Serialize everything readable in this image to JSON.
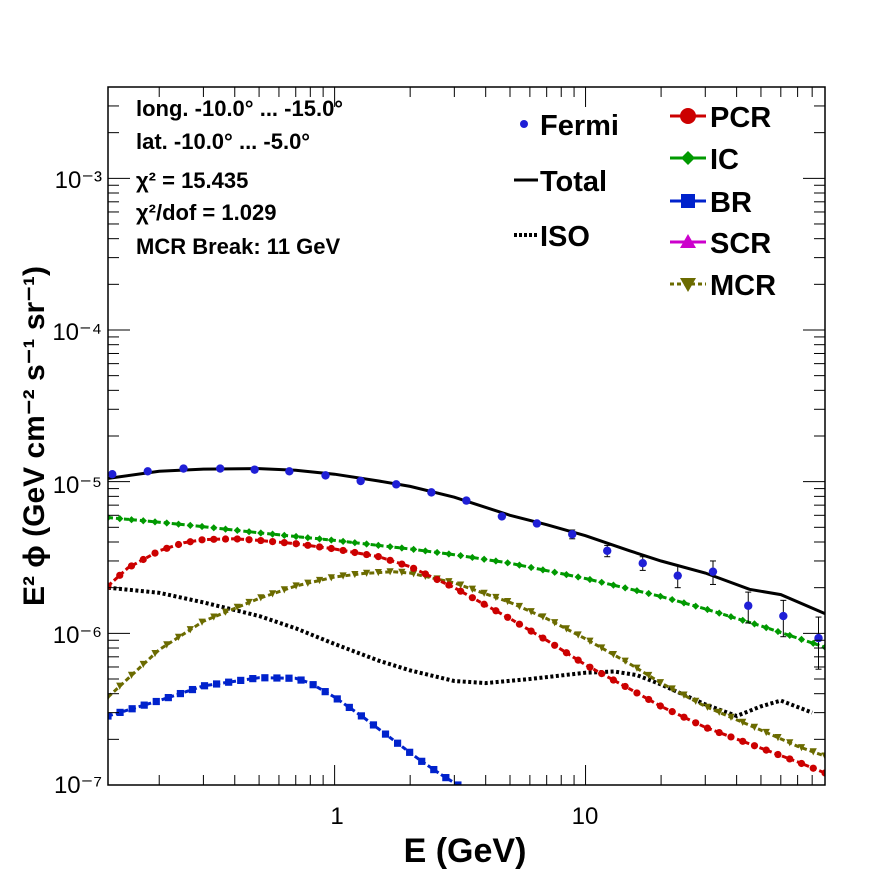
{
  "chart_data": {
    "type": "line",
    "xscale": "log",
    "yscale": "log",
    "xlim": [
      0.125,
      90
    ],
    "ylim": [
      1e-07,
      0.004
    ],
    "xlabel": "E (GeV)",
    "ylabel": "E² ϕ (GeV cm⁻² s⁻¹ sr⁻¹)",
    "x_ticklabels": [
      "1",
      "10"
    ],
    "y_ticklabels": [
      "10⁻⁷",
      "10⁻⁶",
      "10⁻⁵",
      "10⁻⁴",
      "10⁻³"
    ],
    "annotations": [
      "long. -10.0° ... -15.0°",
      "lat. -10.0° ... -5.0°",
      "χ² = 15.435",
      "χ²/dof = 1.029",
      "MCR Break: 11 GeV"
    ],
    "legend_left": [
      "Fermi",
      "Total",
      "ISO"
    ],
    "legend_right": [
      "PCR",
      "IC",
      "BR",
      "SCR",
      "MCR"
    ],
    "series": [
      {
        "name": "Fermi",
        "style": "points",
        "color": "#1f1fd6",
        "x": [
          0.13,
          0.18,
          0.25,
          0.35,
          0.48,
          0.66,
          0.92,
          1.27,
          1.76,
          2.43,
          3.35,
          4.64,
          6.4,
          8.85,
          12.2,
          16.9,
          23.3,
          32.2,
          44.5,
          61.4,
          84.8
        ],
        "y": [
          1.12e-05,
          1.17e-05,
          1.22e-05,
          1.22e-05,
          1.2e-05,
          1.17e-05,
          1.1e-05,
          1.01e-05,
          9.6e-06,
          8.5e-06,
          7.5e-06,
          5.9e-06,
          5.3e-06,
          4.5e-06,
          3.5e-06,
          2.9e-06,
          2.4e-06,
          2.55e-06,
          1.52e-06,
          1.3e-06,
          9.3e-07
        ],
        "yerr": [
          0,
          0,
          0,
          0,
          0,
          0,
          0,
          0,
          0,
          0,
          0,
          0,
          0,
          3e-07,
          3e-07,
          3e-07,
          4e-07,
          4.5e-07,
          3.5e-07,
          3.5e-07,
          3.5e-07
        ]
      },
      {
        "name": "Total",
        "style": "solid",
        "color": "#000000",
        "x": [
          0.125,
          0.2,
          0.3,
          0.5,
          0.7,
          1,
          1.5,
          2,
          3,
          5,
          7,
          10,
          15,
          20,
          30,
          45,
          60,
          90
        ],
        "y": [
          1.05e-05,
          1.17e-05,
          1.21e-05,
          1.22e-05,
          1.19e-05,
          1.12e-05,
          1.01e-05,
          9.3e-06,
          7.9e-06,
          6e-06,
          5.2e-06,
          4.4e-06,
          3.5e-06,
          3e-06,
          2.5e-06,
          1.95e-06,
          1.8e-06,
          1.35e-06
        ]
      },
      {
        "name": "ISO",
        "style": "dotted",
        "color": "#000000",
        "x": [
          0.125,
          0.2,
          0.3,
          0.5,
          0.7,
          1,
          1.5,
          2,
          3,
          4,
          6,
          10,
          13,
          16,
          20,
          30,
          40,
          50,
          60,
          80
        ],
        "y": [
          2e-06,
          1.85e-06,
          1.6e-06,
          1.3e-06,
          1.08e-06,
          8.5e-07,
          6.6e-07,
          5.7e-07,
          4.85e-07,
          4.7e-07,
          5e-07,
          5.5e-07,
          5.6e-07,
          5.3e-07,
          4.6e-07,
          3.4e-07,
          2.85e-07,
          3.3e-07,
          3.6e-07,
          3e-07
        ]
      },
      {
        "name": "PCR",
        "style": "dashed-markers",
        "color": "#cc0000",
        "marker": "circle",
        "x": [
          0.125,
          0.15,
          0.2,
          0.25,
          0.3,
          0.4,
          0.5,
          0.7,
          1,
          1.5,
          2,
          3,
          5,
          7,
          10,
          15,
          20,
          30,
          50,
          70,
          90
        ],
        "y": [
          2.05e-06,
          2.7e-06,
          3.5e-06,
          3.95e-06,
          4.15e-06,
          4.2e-06,
          4.1e-06,
          3.9e-06,
          3.6e-06,
          3.2e-06,
          2.75e-06,
          2e-06,
          1.25e-06,
          9e-07,
          6.2e-07,
          4.3e-07,
          3.3e-07,
          2.4e-07,
          1.75e-07,
          1.42e-07,
          1.2e-07
        ]
      },
      {
        "name": "IC",
        "style": "dashed-markers",
        "color": "#009900",
        "marker": "diamond",
        "x": [
          0.125,
          0.2,
          0.3,
          0.5,
          0.7,
          1,
          2,
          3,
          5,
          10,
          20,
          30,
          50,
          90
        ],
        "y": [
          5.8e-06,
          5.4e-06,
          5.05e-06,
          4.6e-06,
          4.35e-06,
          4.1e-06,
          3.6e-06,
          3.3e-06,
          2.9e-06,
          2.3e-06,
          1.75e-06,
          1.45e-06,
          1.12e-06,
          8.1e-07
        ]
      },
      {
        "name": "BR",
        "style": "dashed-markers",
        "color": "#0022cc",
        "marker": "square",
        "x": [
          0.125,
          0.2,
          0.3,
          0.5,
          0.7,
          0.8,
          1,
          1.3,
          1.7,
          2.2,
          2.7,
          3.1
        ],
        "y": [
          2.85e-07,
          3.6e-07,
          4.5e-07,
          5.1e-07,
          5.05e-07,
          4.7e-07,
          3.8e-07,
          2.8e-07,
          2e-07,
          1.45e-07,
          1.15e-07,
          1e-07
        ]
      },
      {
        "name": "SCR",
        "style": "dashed-markers",
        "color": "#cc00cc",
        "marker": "triangle-up",
        "x": [],
        "y": []
      },
      {
        "name": "MCR",
        "style": "dashed-markers",
        "color": "#6b6b00",
        "marker": "triangle-down",
        "x": [
          0.125,
          0.2,
          0.3,
          0.5,
          0.7,
          1,
          1.3,
          1.7,
          2,
          3,
          5,
          7,
          10,
          15,
          20,
          30,
          50,
          70,
          90
        ],
        "y": [
          3.8e-07,
          7.8e-07,
          1.2e-06,
          1.7e-06,
          2.05e-06,
          2.35e-06,
          2.48e-06,
          2.55e-06,
          2.5e-06,
          2.15e-06,
          1.6e-06,
          1.25e-06,
          9.2e-07,
          6.3e-07,
          4.7e-07,
          3.3e-07,
          2.3e-07,
          1.8e-07,
          1.55e-07
        ]
      }
    ]
  }
}
